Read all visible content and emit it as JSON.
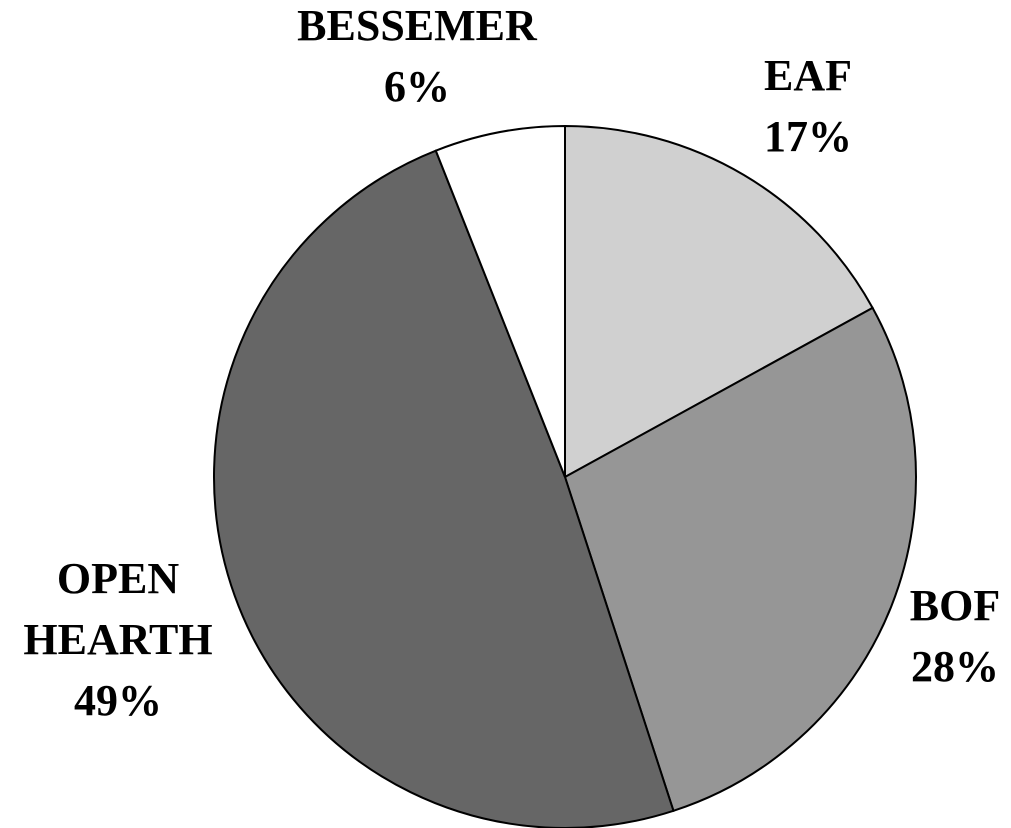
{
  "chart_data": {
    "type": "pie",
    "categories": [
      "EAF",
      "BOF",
      "OPEN HEARTH",
      "BESSEMER"
    ],
    "values": [
      17,
      28,
      49,
      6
    ],
    "value_labels": [
      "17%",
      "28%",
      "49%",
      "6%"
    ],
    "colors": [
      "#d0d0d0",
      "#969696",
      "#666666",
      "#ffffff"
    ]
  }
}
